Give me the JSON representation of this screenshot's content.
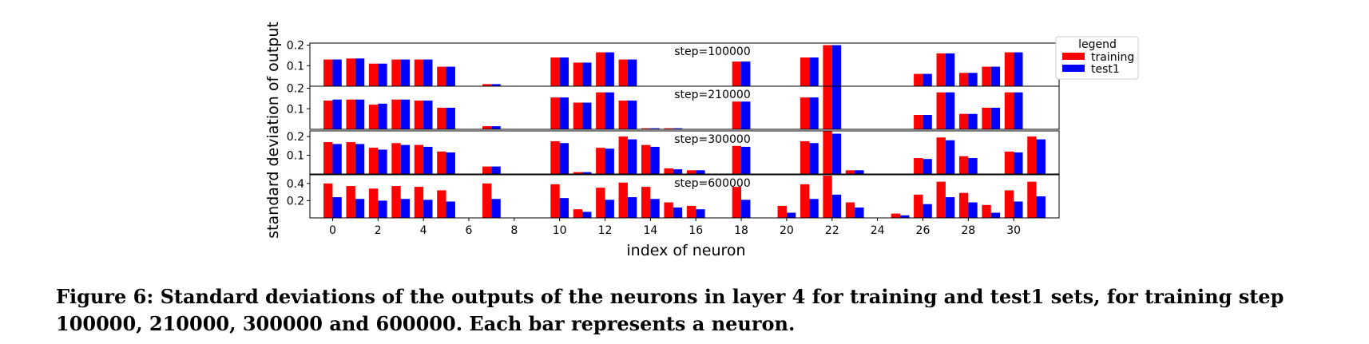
{
  "chart_data": {
    "type": "bar",
    "xlabel": "index of neuron",
    "ylabel": "standard deviation of output",
    "x_ticks": [
      0,
      2,
      4,
      6,
      8,
      10,
      12,
      14,
      16,
      18,
      20,
      22,
      24,
      26,
      28,
      30
    ],
    "x_tick_labels": [
      "0",
      "2",
      "4",
      "6",
      "8",
      "10",
      "12",
      "14",
      "16",
      "18",
      "20",
      "22",
      "24",
      "26",
      "28",
      "30"
    ],
    "neuron_count": 32,
    "legend": {
      "title": "legend",
      "placement": "right",
      "entries": [
        {
          "name": "training",
          "color": "#ff0000"
        },
        {
          "name": "test1",
          "color": "#0000ff"
        }
      ]
    },
    "panels": [
      {
        "label": "step=100000",
        "ylim": [
          0,
          0.21
        ],
        "yticks": [
          0.1,
          0.2
        ],
        "ytick_labels": [
          "0.1",
          "0.2"
        ],
        "series": [
          {
            "name": "training",
            "color": "#ff0000",
            "values": [
              0.13,
              0.135,
              0.11,
              0.13,
              0.13,
              0.095,
              0,
              0.01,
              0,
              0,
              0.14,
              0.115,
              0.165,
              0.13,
              0,
              0,
              0,
              0,
              0.12,
              0,
              0,
              0.14,
              0.2,
              0,
              0,
              0,
              0.06,
              0.16,
              0.065,
              0.095,
              0.165,
              0
            ]
          },
          {
            "name": "test1",
            "color": "#0000ff",
            "values": [
              0.13,
              0.135,
              0.11,
              0.13,
              0.13,
              0.095,
              0,
              0.01,
              0,
              0,
              0.14,
              0.115,
              0.165,
              0.13,
              0,
              0,
              0,
              0,
              0.12,
              0,
              0,
              0.14,
              0.2,
              0,
              0,
              0,
              0.06,
              0.16,
              0.065,
              0.095,
              0.165,
              0
            ]
          }
        ]
      },
      {
        "label": "step=210000",
        "ylim": [
          0,
          0.21
        ],
        "yticks": [
          0.1,
          0.2
        ],
        "ytick_labels": [
          "0.1",
          "0.2"
        ],
        "series": [
          {
            "name": "training",
            "color": "#ff0000",
            "values": [
              0.14,
              0.145,
              0.12,
              0.145,
              0.14,
              0.105,
              0,
              0.015,
              0,
              0,
              0.155,
              0.13,
              0.18,
              0.14,
              0.005,
              0.005,
              0,
              0,
              0.135,
              0,
              0,
              0.155,
              0.21,
              0,
              0,
              0,
              0.07,
              0.18,
              0.075,
              0.105,
              0.18,
              0
            ]
          },
          {
            "name": "test1",
            "color": "#0000ff",
            "values": [
              0.145,
              0.145,
              0.125,
              0.145,
              0.14,
              0.105,
              0,
              0.015,
              0,
              0,
              0.155,
              0.13,
              0.18,
              0.14,
              0.005,
              0.005,
              0,
              0,
              0.135,
              0,
              0,
              0.155,
              0.21,
              0,
              0,
              0,
              0.07,
              0.18,
              0.075,
              0.105,
              0.18,
              0
            ]
          }
        ]
      },
      {
        "label": "step=300000",
        "ylim": [
          0,
          0.23
        ],
        "yticks": [
          0.1,
          0.2
        ],
        "ytick_labels": [
          "0.1",
          "0.2"
        ],
        "series": [
          {
            "name": "training",
            "color": "#ff0000",
            "values": [
              0.17,
              0.17,
              0.14,
              0.165,
              0.155,
              0.12,
              0,
              0.04,
              0,
              0,
              0.175,
              0.01,
              0.14,
              0.2,
              0.155,
              0.03,
              0.02,
              0,
              0.15,
              0,
              0,
              0.175,
              0.23,
              0.02,
              0,
              0,
              0.085,
              0.195,
              0.095,
              0,
              0.12,
              0.2
            ]
          },
          {
            "name": "test1",
            "color": "#0000ff",
            "values": [
              0.16,
              0.16,
              0.13,
              0.155,
              0.145,
              0.115,
              0,
              0.04,
              0,
              0,
              0.165,
              0.01,
              0.135,
              0.185,
              0.145,
              0.025,
              0.02,
              0,
              0.145,
              0,
              0,
              0.165,
              0.215,
              0.02,
              0,
              0,
              0.08,
              0.18,
              0.085,
              0,
              0.115,
              0.185
            ]
          }
        ]
      },
      {
        "label": "step=600000",
        "ylim": [
          0,
          0.5
        ],
        "yticks": [
          0.2,
          0.4
        ],
        "ytick_labels": [
          "0.2",
          "0.4"
        ],
        "series": [
          {
            "name": "training",
            "color": "#ff0000",
            "values": [
              0.4,
              0.37,
              0.34,
              0.37,
              0.36,
              0.32,
              0,
              0.4,
              0,
              0,
              0.39,
              0.1,
              0.35,
              0.41,
              0.36,
              0.18,
              0.14,
              0,
              0.36,
              0,
              0.14,
              0.39,
              0.49,
              0.18,
              0,
              0.05,
              0.27,
              0.42,
              0.29,
              0.15,
              0.32,
              0.42
            ]
          },
          {
            "name": "test1",
            "color": "#0000ff",
            "values": [
              0.24,
              0.22,
              0.2,
              0.22,
              0.21,
              0.19,
              0,
              0.22,
              0,
              0,
              0.23,
              0.07,
              0.21,
              0.24,
              0.22,
              0.12,
              0.1,
              0,
              0.21,
              0,
              0.06,
              0.22,
              0.27,
              0.12,
              0,
              0.03,
              0.16,
              0.24,
              0.18,
              0.06,
              0.19,
              0.25
            ]
          }
        ]
      }
    ]
  },
  "caption": "Figure 6: Standard deviations of the outputs of the neurons in layer 4 for training and test1 sets, for training step 100000, 210000, 300000 and 600000. Each bar represents a neuron."
}
